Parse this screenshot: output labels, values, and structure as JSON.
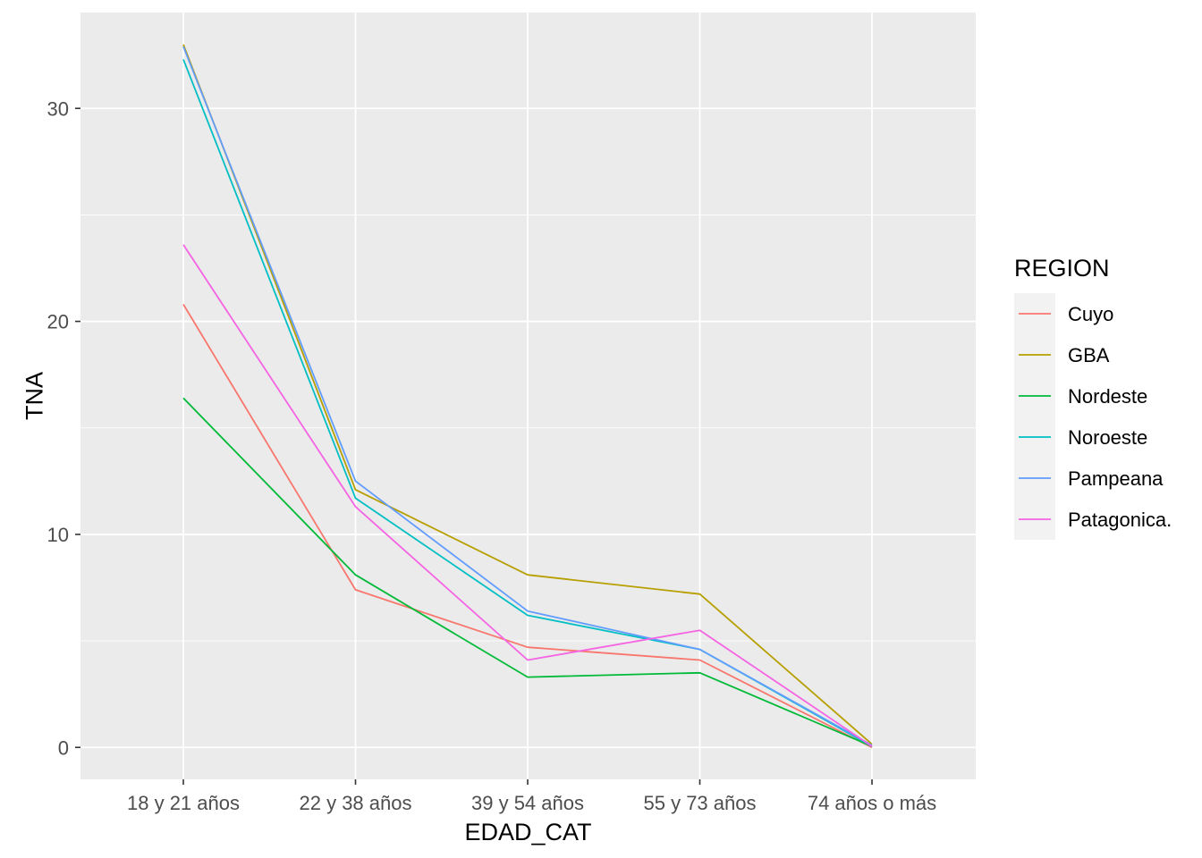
{
  "chart_data": {
    "type": "line",
    "xlabel": "EDAD_CAT",
    "ylabel": "TNA",
    "categories": [
      "18 y 21 años",
      "22 y 38 años",
      "39 y 54 años",
      "55 y 73 años",
      "74 años o más"
    ],
    "ylim": [
      -1.5,
      34.5
    ],
    "yticks": [
      0,
      10,
      20,
      30
    ],
    "grid": true,
    "legend": {
      "title": "REGION",
      "position": "right"
    },
    "series": [
      {
        "name": "Cuyo",
        "color": "#F8766D",
        "values": [
          20.8,
          7.4,
          4.7,
          4.1,
          0.0
        ]
      },
      {
        "name": "GBA",
        "color": "#B79F00",
        "values": [
          33.0,
          12.1,
          8.1,
          7.2,
          0.15
        ]
      },
      {
        "name": "Nordeste",
        "color": "#00BA38",
        "values": [
          16.4,
          8.1,
          3.3,
          3.5,
          0.05
        ]
      },
      {
        "name": "Noroeste",
        "color": "#00BFC4",
        "values": [
          32.3,
          11.7,
          6.2,
          4.6,
          0.05
        ]
      },
      {
        "name": "Pampeana",
        "color": "#619CFF",
        "values": [
          32.9,
          12.5,
          6.4,
          4.6,
          0.1
        ]
      },
      {
        "name": "Patagonica.",
        "color": "#F564E3",
        "values": [
          23.6,
          11.3,
          4.1,
          5.5,
          0.05
        ]
      }
    ]
  }
}
